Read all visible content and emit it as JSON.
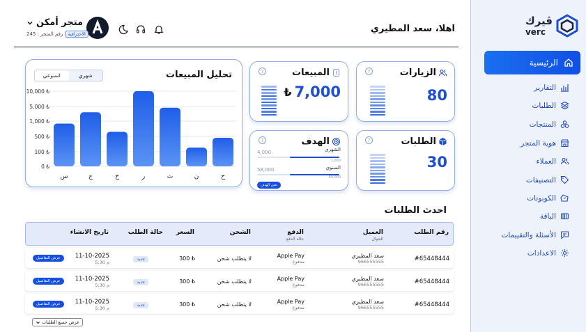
{
  "sidebar": {
    "logo_ar": "ڤيرك",
    "logo_en": "verc",
    "items": [
      {
        "label": "الرئيسية",
        "icon": "home-icon"
      },
      {
        "label": "التقارير",
        "icon": "chart-icon"
      },
      {
        "label": "الطلبات",
        "icon": "layers-icon"
      },
      {
        "label": "المنتجات",
        "icon": "products-icon"
      },
      {
        "label": "هوية المتجر",
        "icon": "store-icon"
      },
      {
        "label": "العملاء",
        "icon": "users-icon"
      },
      {
        "label": "التصنيفات",
        "icon": "tag-icon"
      },
      {
        "label": "الكوبونات",
        "icon": "coupon-icon"
      },
      {
        "label": "الباقة",
        "icon": "package-icon"
      },
      {
        "label": "الأسئلة والتقييمات",
        "icon": "chat-icon"
      },
      {
        "label": "الاعدادات",
        "icon": "gear-icon"
      }
    ]
  },
  "header": {
    "greeting": "اهلا، سعد المطيري",
    "store_name": "متجر أمكن",
    "store_badge": "الاحترافية",
    "store_number": "رقم المتجر : 245"
  },
  "cards": {
    "visits": {
      "title": "الزيارات",
      "value": "80"
    },
    "sales": {
      "title": "المبيعات",
      "value": "7,000",
      "currency": "₺"
    },
    "orders": {
      "title": "الطلبات",
      "value": "30"
    },
    "goal": {
      "title": "الهدف",
      "monthly_label": "الشهري",
      "monthly_value": "4,000",
      "monthly_of": "1,000",
      "monthly_progress": 0.6,
      "yearly_label": "السنوي",
      "yearly_value": "58,000",
      "yearly_of": "60,000",
      "yearly_progress": 0.6,
      "button": "تعين الهدف"
    }
  },
  "chart_data": {
    "type": "bar",
    "title": "تحليل المبيعات",
    "toggle": {
      "weekly": "اسبوعي",
      "monthly": "شهري",
      "selected": "اسبوعي"
    },
    "categories": [
      "س",
      "ج",
      "خ",
      "ر",
      "ث",
      "ن",
      "ح"
    ],
    "values": [
      5700,
      7200,
      4600,
      10000,
      7800,
      2500,
      3800
    ],
    "yticks": [
      "10,000 ₺",
      "5,000 ₺",
      "1,000 ₺",
      "500 ₺",
      "100 ₺",
      "0 ₺"
    ],
    "ylim": [
      0,
      10000
    ],
    "color": "#1f5ee8"
  },
  "orders": {
    "title": "احدث الطلبات",
    "columns": {
      "id": "رقم الطلب",
      "customer": "العميل",
      "customer_sub": "الجوال",
      "payment": "الدفع",
      "payment_sub": "حالة الدفع",
      "shipping": "الشحن",
      "price": "السعر",
      "status": "حالة الطلب",
      "date": "تاريخ الانشاء"
    },
    "rows": [
      {
        "id": "#65448444",
        "customer": "سعد المطيري",
        "phone": "966555555",
        "payment": "Apple Pay",
        "pay_status": "مدفوع",
        "shipping": "لا يتطلب شحن",
        "price": "300 ₺",
        "status": "جديد",
        "date": "11-10-2025",
        "time": "5:30 م",
        "action": "عرض التفاصيل"
      },
      {
        "id": "#65448444",
        "customer": "سعد المطيري",
        "phone": "966555555",
        "payment": "Apple Pay",
        "pay_status": "مدفوع",
        "shipping": "لا يتطلب شحن",
        "price": "300 ₺",
        "status": "جديد",
        "date": "11-10-2025",
        "time": "5:30 م",
        "action": "عرض التفاصيل"
      },
      {
        "id": "#65448444",
        "customer": "سعد المطيري",
        "phone": "966555555",
        "payment": "Apple Pay",
        "pay_status": "مدفوع",
        "shipping": "لا يتطلب شحن",
        "price": "300 ₺",
        "status": "جديد",
        "date": "11-10-2025",
        "time": "5:30 م",
        "action": "عرض التفاصيل"
      }
    ],
    "show_all": "عرض جميع الطلبات"
  }
}
